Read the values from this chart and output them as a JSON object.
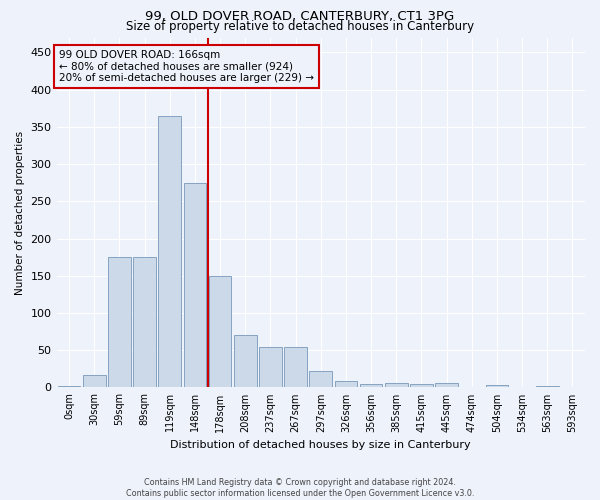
{
  "title": "99, OLD DOVER ROAD, CANTERBURY, CT1 3PG",
  "subtitle": "Size of property relative to detached houses in Canterbury",
  "xlabel": "Distribution of detached houses by size in Canterbury",
  "ylabel": "Number of detached properties",
  "bar_color": "#ccd9e8",
  "bar_edge_color": "#7799bb",
  "background_color": "#eef2fb",
  "grid_color": "#ffffff",
  "vline_x": 5.5,
  "vline_color": "#cc0000",
  "annotation_text": "99 OLD DOVER ROAD: 166sqm\n← 80% of detached houses are smaller (924)\n20% of semi-detached houses are larger (229) →",
  "annotation_box_color": "#cc0000",
  "footer_text": "Contains HM Land Registry data © Crown copyright and database right 2024.\nContains public sector information licensed under the Open Government Licence v3.0.",
  "categories": [
    "0sqm",
    "30sqm",
    "59sqm",
    "89sqm",
    "119sqm",
    "148sqm",
    "178sqm",
    "208sqm",
    "237sqm",
    "267sqm",
    "297sqm",
    "326sqm",
    "356sqm",
    "385sqm",
    "415sqm",
    "445sqm",
    "474sqm",
    "504sqm",
    "534sqm",
    "563sqm",
    "593sqm"
  ],
  "values": [
    2,
    17,
    175,
    175,
    365,
    275,
    150,
    70,
    54,
    54,
    22,
    9,
    4,
    6,
    5,
    6,
    0,
    3,
    0,
    2,
    0
  ],
  "ylim": [
    0,
    470
  ],
  "yticks": [
    0,
    50,
    100,
    150,
    200,
    250,
    300,
    350,
    400,
    450
  ]
}
